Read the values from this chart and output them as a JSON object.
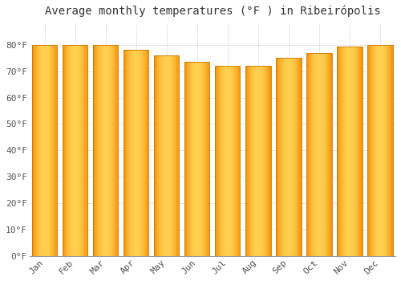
{
  "title": "Average monthly temperatures (°F ) in Ribeirópolis",
  "months": [
    "Jan",
    "Feb",
    "Mar",
    "Apr",
    "May",
    "Jun",
    "Jul",
    "Aug",
    "Sep",
    "Oct",
    "Nov",
    "Dec"
  ],
  "values": [
    80,
    80,
    80,
    78,
    76,
    73.5,
    72,
    72,
    75,
    77,
    79.5,
    80
  ],
  "bar_color_center": "#FFCC44",
  "bar_color_edge": "#F5920A",
  "bar_outline_color": "#CC7700",
  "ylim": [
    0,
    88
  ],
  "yticks": [
    0,
    10,
    20,
    30,
    40,
    50,
    60,
    70,
    80
  ],
  "ytick_labels": [
    "0°F",
    "10°F",
    "20°F",
    "30°F",
    "40°F",
    "50°F",
    "60°F",
    "70°F",
    "80°F"
  ],
  "background_color": "#FFFFFF",
  "grid_color": "#DDDDDD",
  "title_fontsize": 10,
  "tick_fontsize": 8
}
